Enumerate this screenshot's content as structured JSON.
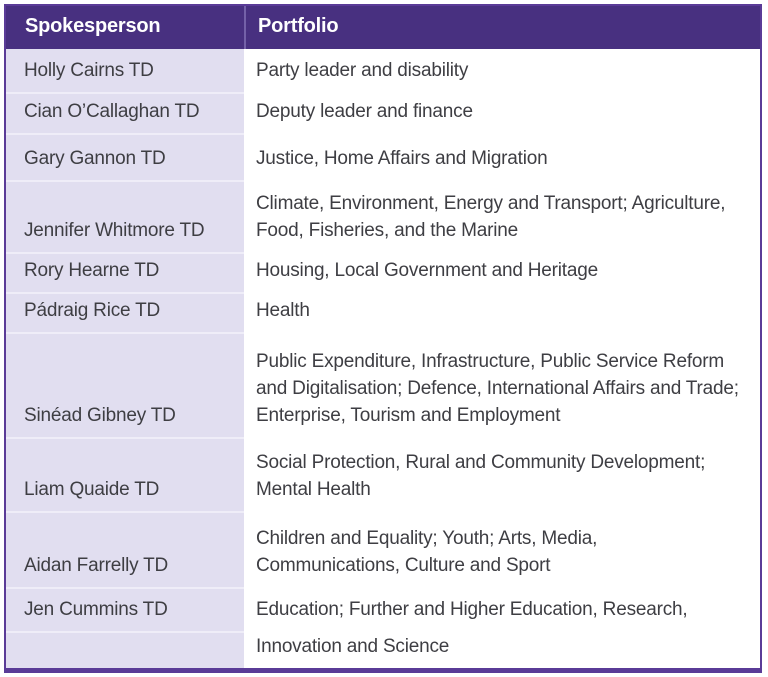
{
  "table": {
    "headers": [
      "Spokesperson",
      "Portfolio"
    ],
    "rows": [
      {
        "spokesperson": "Holly Cairns TD",
        "portfolio": "Party leader and disability"
      },
      {
        "spokesperson": "Cian O’Callaghan TD",
        "portfolio": "Deputy leader and finance"
      },
      {
        "spokesperson": "Gary Gannon TD",
        "portfolio": "Justice, Home Affairs and Migration"
      },
      {
        "spokesperson": "Jennifer Whitmore TD",
        "portfolio": "Climate, Environment, Energy and Transport; Agriculture,\nFood, Fisheries, and the Marine"
      },
      {
        "spokesperson": "Rory Hearne TD",
        "portfolio": "Housing, Local Government and Heritage"
      },
      {
        "spokesperson": "Pádraig Rice TD",
        "portfolio": "Health"
      },
      {
        "spokesperson": "Sinéad Gibney TD",
        "portfolio": "Public Expenditure, Infrastructure, Public Service Reform\nand Digitalisation; Defence, International Affairs and Trade;\nEnterprise, Tourism and Employment"
      },
      {
        "spokesperson": "Liam Quaide TD",
        "portfolio": "Social Protection, Rural and Community Development;\nMental Health"
      },
      {
        "spokesperson": "Aidan Farrelly TD",
        "portfolio": "Children and Equality; Youth; Arts, Media,\nCommunications, Culture and Sport"
      },
      {
        "spokesperson": "Jen Cummins TD",
        "portfolio": "Education; Further and Higher Education, Research,"
      },
      {
        "spokesperson": "",
        "portfolio": "Innovation and Science"
      }
    ],
    "colors": {
      "header_background": "#483080",
      "header_text": "#FFFFFF",
      "border": "#5A3B97",
      "name_column_background": "#E1DEF0",
      "row_divider": "#EFEDF8",
      "body_text": "#3E3E43"
    }
  }
}
